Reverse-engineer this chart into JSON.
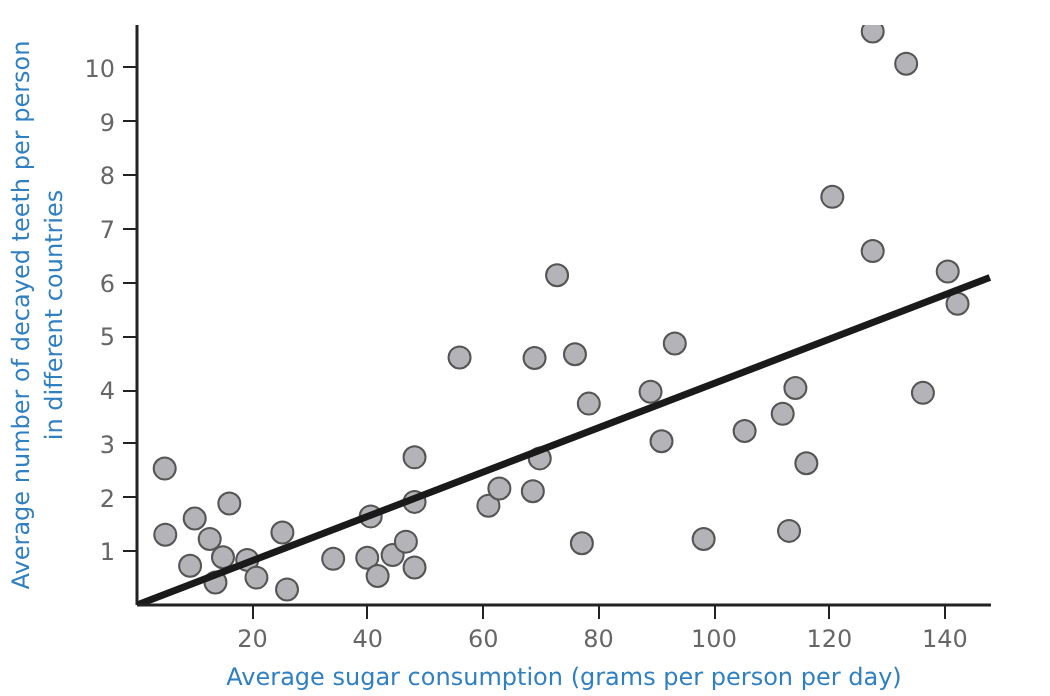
{
  "chart_data": {
    "type": "scatter",
    "xlabel": "Average sugar consumption (grams per person per day)",
    "ylabel": "Average number of decayed teeth per person\nin different countries",
    "xlim": [
      0,
      148
    ],
    "ylim": [
      0,
      10.8
    ],
    "xticks": [
      20,
      40,
      60,
      80,
      100,
      120,
      140
    ],
    "yticks": [
      1,
      2,
      3,
      4,
      5,
      6,
      7,
      8,
      9,
      10
    ],
    "marker": "circle",
    "series": [
      {
        "color": "#b4b4b8",
        "x": [
          4.8,
          4.9,
          9.2,
          10.0,
          12.6,
          13.6,
          14.9,
          16.0,
          19.1,
          20.7,
          25.2,
          26.0,
          34.0,
          39.9,
          40.5,
          41.7,
          44.3,
          46.6,
          48.1,
          48.1,
          48.1,
          55.9,
          60.9,
          62.8,
          68.6,
          68.9,
          69.8,
          72.8,
          75.9,
          77.1,
          78.3,
          89.0,
          90.9,
          93.2,
          98.2,
          105.3,
          111.9,
          113.0,
          114.1,
          116.0,
          120.5,
          127.5,
          127.5,
          133.3,
          136.2,
          140.5,
          142.2
        ],
        "values": [
          2.54,
          1.31,
          0.73,
          1.61,
          1.23,
          0.42,
          0.89,
          1.89,
          0.84,
          0.51,
          1.35,
          0.29,
          0.86,
          0.88,
          1.65,
          0.54,
          0.93,
          1.18,
          0.7,
          1.92,
          2.75,
          4.61,
          1.85,
          2.17,
          2.12,
          4.6,
          2.73,
          6.14,
          4.67,
          1.15,
          3.75,
          3.97,
          3.05,
          4.87,
          1.23,
          3.24,
          3.56,
          1.38,
          4.04,
          2.64,
          7.6,
          10.68,
          6.59,
          10.08,
          3.95,
          6.21,
          5.61
        ]
      },
      {
        "type": "line",
        "color": "#1a1a1a",
        "marker": "none",
        "line_style": "solid",
        "x": [
          0,
          147.8
        ],
        "values": [
          0,
          6.1
        ]
      }
    ]
  }
}
